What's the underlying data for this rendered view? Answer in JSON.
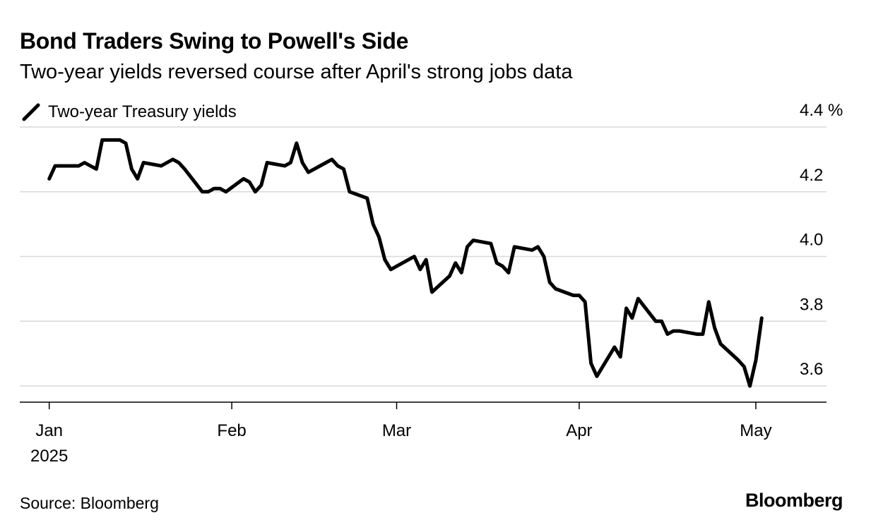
{
  "header": {
    "title": "Bond Traders Swing to Powell's Side",
    "subtitle": "Two-year yields reversed course after April's strong jobs data"
  },
  "legend": {
    "label": "Two-year Treasury yields",
    "color": "#000000"
  },
  "footer": {
    "source": "Source: Bloomberg",
    "brand": "Bloomberg"
  },
  "chart_data": {
    "type": "line",
    "title": "Bond Traders Swing to Powell's Side",
    "subtitle": "Two-year yields reversed course after April's strong jobs data",
    "xlabel": "",
    "ylabel": "",
    "ylim": [
      3.55,
      4.4
    ],
    "xlim": [
      "2024-12-27",
      "2025-05-13"
    ],
    "grid": true,
    "legend_position": "top-left",
    "y_ticks": [
      {
        "value": 4.4,
        "label": "4.4 %"
      },
      {
        "value": 4.2,
        "label": "4.2"
      },
      {
        "value": 4.0,
        "label": "4.0"
      },
      {
        "value": 3.8,
        "label": "3.8"
      },
      {
        "value": 3.6,
        "label": "3.6"
      }
    ],
    "x_ticks": [
      {
        "date": "2025-01-01",
        "label": "Jan",
        "sublabel": "2025"
      },
      {
        "date": "2025-02-01",
        "label": "Feb",
        "sublabel": ""
      },
      {
        "date": "2025-03-01",
        "label": "Mar",
        "sublabel": ""
      },
      {
        "date": "2025-04-01",
        "label": "Apr",
        "sublabel": ""
      },
      {
        "date": "2025-05-01",
        "label": "May",
        "sublabel": ""
      }
    ],
    "series": [
      {
        "name": "Two-year Treasury yields",
        "color": "#000000",
        "x": [
          "2025-01-01",
          "2025-01-02",
          "2025-01-03",
          "2025-01-06",
          "2025-01-07",
          "2025-01-08",
          "2025-01-09",
          "2025-01-10",
          "2025-01-13",
          "2025-01-14",
          "2025-01-15",
          "2025-01-16",
          "2025-01-17",
          "2025-01-20",
          "2025-01-21",
          "2025-01-22",
          "2025-01-23",
          "2025-01-24",
          "2025-01-27",
          "2025-01-28",
          "2025-01-29",
          "2025-01-30",
          "2025-01-31",
          "2025-02-03",
          "2025-02-04",
          "2025-02-05",
          "2025-02-06",
          "2025-02-07",
          "2025-02-10",
          "2025-02-11",
          "2025-02-12",
          "2025-02-13",
          "2025-02-14",
          "2025-02-17",
          "2025-02-18",
          "2025-02-19",
          "2025-02-20",
          "2025-02-21",
          "2025-02-24",
          "2025-02-25",
          "2025-02-26",
          "2025-02-27",
          "2025-02-28",
          "2025-03-03",
          "2025-03-04",
          "2025-03-05",
          "2025-03-06",
          "2025-03-07",
          "2025-03-10",
          "2025-03-11",
          "2025-03-12",
          "2025-03-13",
          "2025-03-14",
          "2025-03-17",
          "2025-03-18",
          "2025-03-19",
          "2025-03-20",
          "2025-03-21",
          "2025-03-24",
          "2025-03-25",
          "2025-03-26",
          "2025-03-27",
          "2025-03-28",
          "2025-03-31",
          "2025-04-01",
          "2025-04-02",
          "2025-04-03",
          "2025-04-04",
          "2025-04-07",
          "2025-04-08",
          "2025-04-09",
          "2025-04-10",
          "2025-04-11",
          "2025-04-14",
          "2025-04-15",
          "2025-04-16",
          "2025-04-17",
          "2025-04-18",
          "2025-04-21",
          "2025-04-22",
          "2025-04-23",
          "2025-04-24",
          "2025-04-25",
          "2025-04-28",
          "2025-04-29",
          "2025-04-30",
          "2025-05-01",
          "2025-05-02"
        ],
        "values": [
          4.24,
          4.28,
          4.28,
          4.28,
          4.29,
          4.28,
          4.27,
          4.36,
          4.36,
          4.35,
          4.27,
          4.24,
          4.29,
          4.28,
          4.29,
          4.3,
          4.29,
          4.27,
          4.2,
          4.2,
          4.21,
          4.21,
          4.2,
          4.24,
          4.23,
          4.2,
          4.22,
          4.29,
          4.28,
          4.29,
          4.35,
          4.29,
          4.26,
          4.29,
          4.3,
          4.28,
          4.27,
          4.2,
          4.18,
          4.1,
          4.06,
          3.99,
          3.96,
          3.99,
          4.0,
          3.96,
          3.99,
          3.89,
          3.94,
          3.98,
          3.95,
          4.03,
          4.05,
          4.04,
          3.98,
          3.97,
          3.95,
          4.03,
          4.02,
          4.03,
          4.0,
          3.92,
          3.9,
          3.88,
          3.88,
          3.86,
          3.67,
          3.63,
          3.72,
          3.69,
          3.84,
          3.81,
          3.87,
          3.8,
          3.8,
          3.76,
          3.77,
          3.77,
          3.76,
          3.76,
          3.86,
          3.78,
          3.73,
          3.68,
          3.66,
          3.6,
          3.68,
          3.81
        ]
      }
    ]
  }
}
